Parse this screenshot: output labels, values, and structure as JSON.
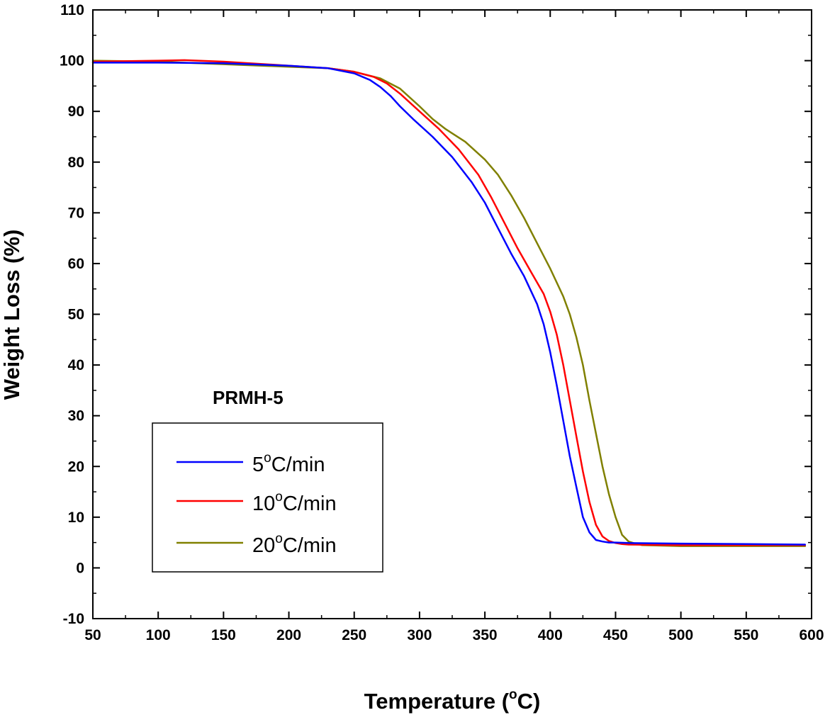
{
  "chart_data": {
    "type": "line",
    "title": "",
    "annotation": "PRMH-5",
    "xlabel": {
      "main": "Temperature (",
      "sup": "o",
      "unit": "C)"
    },
    "ylabel": "Weight Loss (%)",
    "xlim": [
      50,
      600
    ],
    "ylim": [
      -10,
      110
    ],
    "xticks": [
      50,
      100,
      150,
      200,
      250,
      300,
      350,
      400,
      450,
      500,
      550,
      600
    ],
    "yticks": [
      -10,
      0,
      10,
      20,
      30,
      40,
      50,
      60,
      70,
      80,
      90,
      100,
      110
    ],
    "legend_position": "lower-left",
    "series": [
      {
        "name": "5°C/min",
        "label_parts": {
          "num": "5",
          "sup": "o",
          "unit": "C/min"
        },
        "color": "#0000ff",
        "x": [
          50,
          100,
          150,
          200,
          230,
          250,
          262,
          270,
          278,
          285,
          295,
          310,
          325,
          340,
          350,
          360,
          370,
          380,
          390,
          395,
          400,
          405,
          410,
          415,
          420,
          425,
          430,
          435,
          440,
          445,
          450,
          460,
          500,
          550,
          595
        ],
        "y": [
          99.6,
          99.6,
          99.5,
          99.0,
          98.5,
          97.5,
          96.2,
          94.8,
          93.0,
          91.0,
          88.5,
          85.0,
          81.0,
          76.0,
          72.0,
          67.0,
          62.0,
          57.5,
          52.0,
          48.0,
          42.5,
          36.0,
          29.0,
          22.0,
          16.0,
          10.0,
          7.0,
          5.5,
          5.2,
          5.0,
          5.0,
          4.9,
          4.8,
          4.7,
          4.6
        ]
      },
      {
        "name": "10°C/min",
        "label_parts": {
          "num": "10",
          "sup": "o",
          "unit": "C/min"
        },
        "color": "#ff0000",
        "x": [
          50,
          100,
          120,
          150,
          200,
          230,
          250,
          265,
          275,
          285,
          300,
          315,
          330,
          345,
          355,
          365,
          375,
          385,
          395,
          400,
          405,
          410,
          415,
          420,
          425,
          430,
          435,
          440,
          445,
          450,
          455,
          460,
          500,
          550,
          595
        ],
        "y": [
          99.8,
          100.0,
          100.1,
          99.8,
          99.0,
          98.5,
          97.8,
          96.8,
          95.5,
          93.5,
          90.0,
          86.5,
          82.5,
          77.5,
          73.0,
          68.0,
          63.0,
          58.5,
          54.0,
          50.5,
          46.0,
          40.0,
          33.0,
          26.0,
          19.0,
          13.0,
          8.5,
          6.2,
          5.3,
          4.9,
          4.7,
          4.6,
          4.5,
          4.5,
          4.5
        ]
      },
      {
        "name": "20°C/min",
        "label_parts": {
          "num": "20",
          "sup": "o",
          "unit": "C/min"
        },
        "color": "#808000",
        "x": [
          50,
          100,
          150,
          200,
          230,
          250,
          270,
          285,
          300,
          310,
          320,
          335,
          350,
          360,
          370,
          380,
          390,
          400,
          410,
          415,
          420,
          425,
          430,
          435,
          440,
          445,
          450,
          455,
          460,
          465,
          470,
          500,
          550,
          595
        ],
        "y": [
          100.0,
          99.8,
          99.3,
          98.8,
          98.5,
          97.8,
          96.5,
          94.5,
          91.0,
          88.5,
          86.5,
          84.0,
          80.5,
          77.5,
          73.5,
          69.0,
          64.0,
          59.0,
          53.5,
          50.0,
          45.5,
          40.0,
          33.0,
          26.5,
          20.0,
          14.5,
          10.0,
          6.5,
          5.2,
          4.8,
          4.5,
          4.3,
          4.3,
          4.3
        ]
      }
    ]
  }
}
